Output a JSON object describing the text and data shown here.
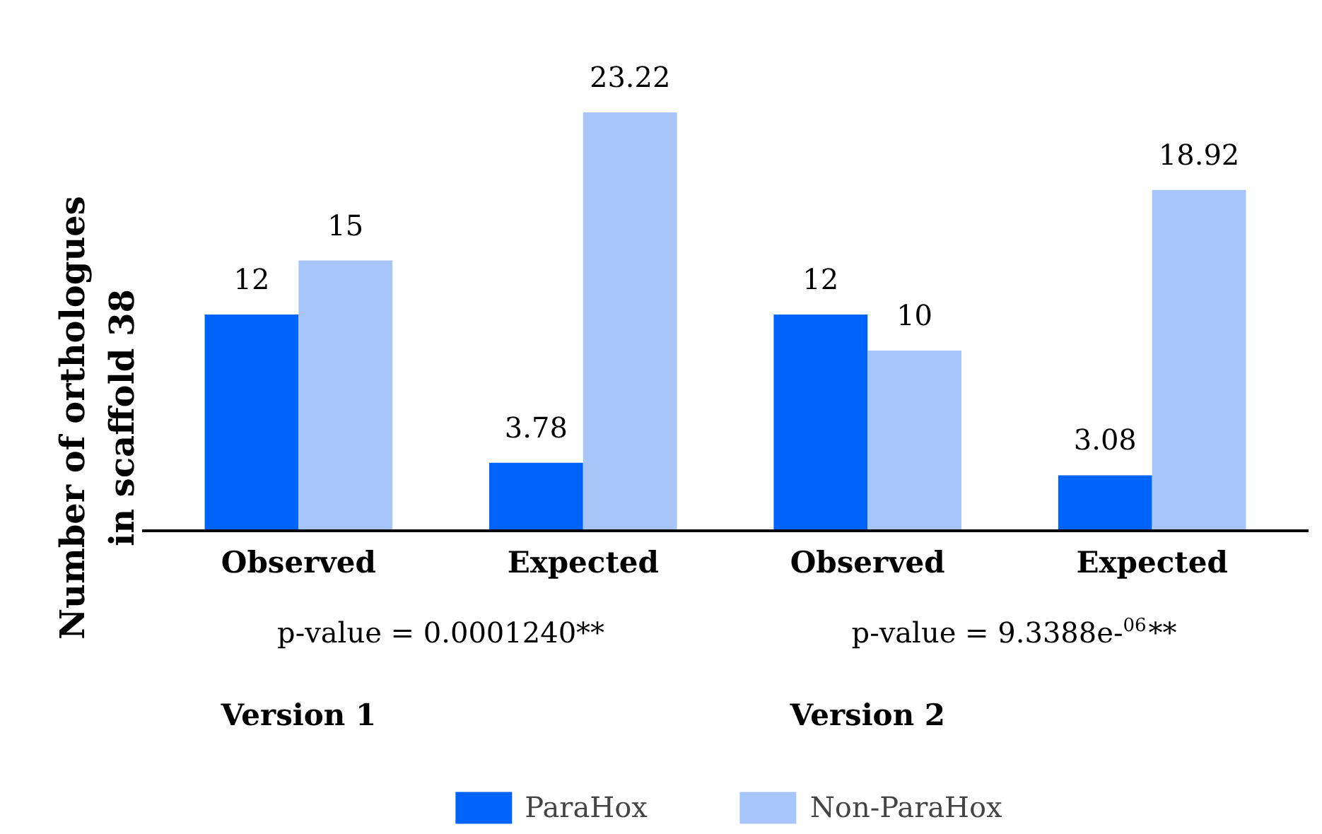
{
  "chart_data": {
    "type": "bar",
    "ylabel": "Number of orthologues\nin scaffold 38",
    "categories": [
      "Observed",
      "Expected",
      "Observed",
      "Expected"
    ],
    "series": [
      {
        "name": "ParaHox",
        "color": "#0063fa",
        "values": [
          12,
          3.78,
          12,
          3.08
        ]
      },
      {
        "name": "Non-ParaHox",
        "color": "#a8c5fa",
        "values": [
          15,
          23.22,
          10,
          18.92
        ]
      }
    ],
    "data_labels": true,
    "legend": "bottom",
    "grid": false,
    "annotations": [
      "p-value = 0.0001240**",
      "p-value = 9.3388e-$^{06}$**",
      "Version 1",
      "Version 2"
    ]
  }
}
